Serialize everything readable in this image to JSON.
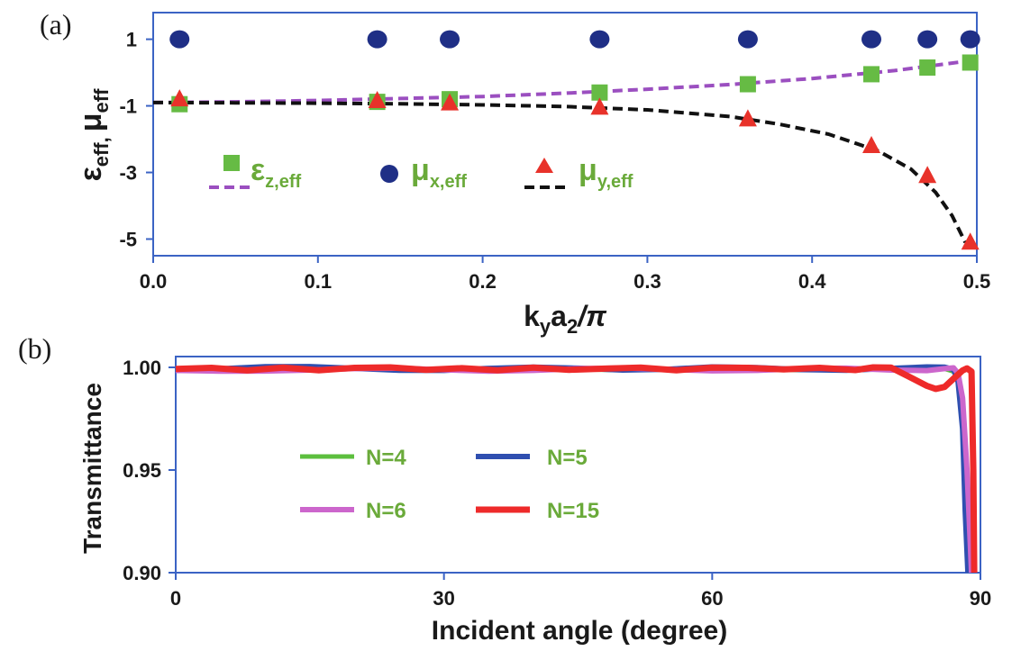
{
  "colors": {
    "axis": "#3b63c4",
    "eps_marker": "#66bb44",
    "eps_line": "#9b4fc0",
    "mux_marker": "#1f2f86",
    "muy_marker": "#e8322a",
    "muy_line": "#111111",
    "legend_text": "#6aaa3a",
    "n4": "#5cbf3e",
    "n5": "#2f4fb0",
    "n6": "#cc66cc",
    "n15": "#ee2a2a"
  },
  "chart_data": [
    {
      "type": "scatter",
      "panel_label": "(a)",
      "xlabel": {
        "main": "k",
        "sub1": "y",
        "mid": "a",
        "sub2": "2",
        "tail": "/π"
      },
      "ylabel": {
        "e": "ε",
        "esub": "eff,",
        "m": "μ",
        "msub": "eff"
      },
      "xlim": [
        0,
        0.5
      ],
      "ylim": [
        -5.5,
        1.8
      ],
      "xticks": [
        0.0,
        0.1,
        0.2,
        0.3,
        0.4,
        0.5
      ],
      "xtick_labels": [
        "0.0",
        "0.1",
        "0.2",
        "0.3",
        "0.4",
        "0.5"
      ],
      "yticks": [
        1,
        -1,
        -3,
        -5
      ],
      "ytick_labels": [
        "1",
        "-1",
        "-3",
        "-5"
      ],
      "series": [
        {
          "name": "ε_z,eff",
          "legend": {
            "base": "ε",
            "sub": "z,eff"
          },
          "marker": "square",
          "x": [
            0.016,
            0.136,
            0.18,
            0.271,
            0.361,
            0.436,
            0.47,
            0.496
          ],
          "y": [
            -0.95,
            -0.88,
            -0.8,
            -0.6,
            -0.35,
            -0.05,
            0.15,
            0.3
          ]
        },
        {
          "name": "μ_x,eff",
          "legend": {
            "base": "μ",
            "sub": "x,eff"
          },
          "marker": "circle",
          "x": [
            0.016,
            0.136,
            0.18,
            0.271,
            0.361,
            0.436,
            0.47,
            0.496
          ],
          "y": [
            1,
            1,
            1,
            1,
            1,
            1,
            1,
            1
          ]
        },
        {
          "name": "μ_y,eff",
          "legend": {
            "base": "μ",
            "sub": "y,eff"
          },
          "marker": "triangle",
          "x": [
            0.016,
            0.136,
            0.18,
            0.271,
            0.361,
            0.436,
            0.47,
            0.496
          ],
          "y": [
            -0.8,
            -0.85,
            -0.92,
            -1.05,
            -1.4,
            -2.2,
            -3.1,
            -5.1
          ]
        }
      ],
      "fit_lines": [
        {
          "of": "ε_z,eff",
          "style": "dashed",
          "x": [
            0,
            0.05,
            0.1,
            0.15,
            0.2,
            0.25,
            0.3,
            0.35,
            0.4,
            0.45,
            0.5
          ],
          "y": [
            -0.9,
            -0.88,
            -0.84,
            -0.78,
            -0.72,
            -0.62,
            -0.5,
            -0.36,
            -0.18,
            0.06,
            0.38
          ]
        },
        {
          "of": "μ_y,eff",
          "style": "dashed",
          "x": [
            0,
            0.05,
            0.1,
            0.15,
            0.2,
            0.25,
            0.3,
            0.35,
            0.38,
            0.41,
            0.44,
            0.46,
            0.475,
            0.485,
            0.493
          ],
          "y": [
            -0.9,
            -0.91,
            -0.92,
            -0.94,
            -0.97,
            -1.02,
            -1.12,
            -1.32,
            -1.55,
            -1.85,
            -2.35,
            -2.9,
            -3.6,
            -4.3,
            -5.1
          ]
        }
      ]
    },
    {
      "type": "line",
      "panel_label": "(b)",
      "xlabel": "Incident angle (degree)",
      "ylabel": "Transmittance",
      "xlim": [
        0,
        90
      ],
      "ylim": [
        0.9,
        1.0
      ],
      "xticks": [
        0,
        30,
        60,
        90
      ],
      "xtick_labels": [
        "0",
        "30",
        "60",
        "90"
      ],
      "yticks": [
        1.0,
        0.95,
        0.9
      ],
      "ytick_labels": [
        "1.00",
        "0.95",
        "0.90"
      ],
      "legend_position": "center-left",
      "series": [
        {
          "name": "N=4",
          "x": [
            0,
            5,
            10,
            15,
            20,
            25,
            30,
            35,
            40,
            45,
            50,
            55,
            60,
            65,
            70,
            75,
            80,
            84,
            86,
            87,
            87.5,
            88,
            88.4,
            88.7
          ],
          "y": [
            0.9988,
            0.9991,
            0.9986,
            0.999,
            0.9995,
            0.9992,
            0.9987,
            0.9991,
            0.9994,
            0.999,
            0.9987,
            0.9993,
            0.9996,
            0.999,
            0.9987,
            0.9992,
            0.9994,
            0.9996,
            0.9993,
            0.998,
            0.994,
            0.98,
            0.94,
            0.9
          ]
        },
        {
          "name": "N=5",
          "x": [
            0,
            5,
            10,
            15,
            20,
            25,
            30,
            35,
            40,
            45,
            50,
            55,
            60,
            65,
            70,
            75,
            80,
            84,
            86,
            87,
            87.5,
            88,
            88.3,
            88.6
          ],
          "y": [
            0.9985,
            0.9993,
            1.0003,
            1.0004,
            0.9995,
            0.9986,
            0.9985,
            0.9995,
            1.0001,
            0.9996,
            0.9987,
            0.9991,
            1.0002,
            0.9999,
            0.9989,
            0.9986,
            0.9995,
            1.0002,
            1.0001,
            0.999,
            0.993,
            0.97,
            0.93,
            0.9
          ]
        },
        {
          "name": "N=6",
          "x": [
            0,
            5,
            10,
            15,
            20,
            25,
            30,
            35,
            40,
            45,
            50,
            55,
            60,
            65,
            70,
            75,
            80,
            84,
            86,
            87,
            87.5,
            88,
            88.5,
            89
          ],
          "y": [
            0.9985,
            0.9981,
            0.9982,
            0.9987,
            0.9994,
            0.9996,
            0.9988,
            0.9981,
            0.9985,
            0.9994,
            0.9997,
            0.999,
            0.9983,
            0.9985,
            0.9994,
            0.9996,
            0.9987,
            0.9984,
            0.9994,
            0.9998,
            0.997,
            0.985,
            0.95,
            0.9
          ]
        },
        {
          "name": "N=15",
          "x": [
            0,
            4,
            8,
            12,
            16,
            20,
            24,
            28,
            32,
            36,
            40,
            44,
            48,
            52,
            56,
            60,
            64,
            68,
            72,
            76,
            78,
            80,
            82,
            84,
            85,
            86,
            87,
            88,
            88.5,
            89,
            89.2,
            89.3
          ],
          "y": [
            0.9992,
            0.9998,
            0.9985,
            0.9999,
            0.9986,
            0.9998,
            1.0,
            0.9988,
            0.9996,
            0.9986,
            0.9999,
            0.9988,
            0.9994,
            0.9999,
            0.9986,
            0.9999,
            0.9998,
            0.999,
            0.9998,
            0.9987,
            1.0,
            0.9999,
            0.9955,
            0.991,
            0.9895,
            0.9905,
            0.9945,
            0.9985,
            0.9995,
            0.998,
            0.95,
            0.9
          ]
        }
      ]
    }
  ]
}
